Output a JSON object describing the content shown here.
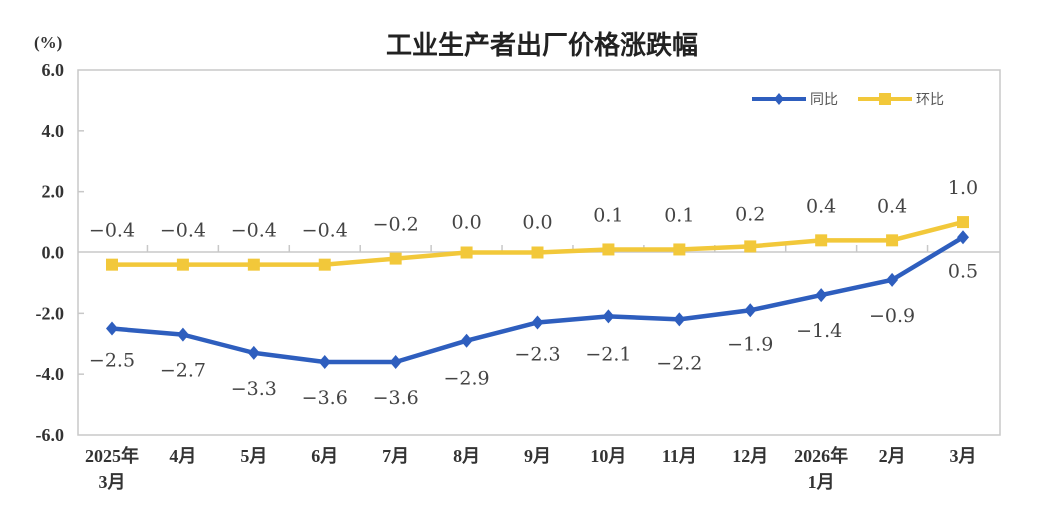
{
  "chart_data": {
    "type": "line",
    "title": "工业生产者出厂价格涨跌幅",
    "ylabel": "(%)",
    "xlabel": "",
    "ylim": [
      -6.0,
      6.0
    ],
    "yticks": [
      "6.0",
      "4.0",
      "2.0",
      "0.0",
      "-2.0",
      "-4.0",
      "-6.0"
    ],
    "ytick_values": [
      6,
      4,
      2,
      0,
      -2,
      -4,
      -6
    ],
    "grid": false,
    "legend_position": "top-right",
    "categories": [
      "2025年 3月",
      "4月",
      "5月",
      "6月",
      "7月",
      "8月",
      "9月",
      "10月",
      "11月",
      "12月",
      "2026年 1月",
      "2月",
      "3月"
    ],
    "category_lines": [
      [
        "2025年",
        "3月"
      ],
      [
        "4月"
      ],
      [
        "5月"
      ],
      [
        "6月"
      ],
      [
        "7月"
      ],
      [
        "8月"
      ],
      [
        "9月"
      ],
      [
        "10月"
      ],
      [
        "11月"
      ],
      [
        "12月"
      ],
      [
        "2026年",
        "1月"
      ],
      [
        "2月"
      ],
      [
        "3月"
      ]
    ],
    "series": [
      {
        "name": "同比",
        "color": "#2E5EBE",
        "marker": "diamond",
        "values": [
          -2.5,
          -2.7,
          -3.3,
          -3.6,
          -3.6,
          -2.9,
          -2.3,
          -2.1,
          -2.2,
          -1.9,
          -1.4,
          -0.9,
          0.5
        ],
        "labels": [
          "−2.5",
          "−2.7",
          "−3.3",
          "−3.6",
          "−3.6",
          "−2.9",
          "−2.3",
          "−2.1",
          "−2.2",
          "−1.9",
          "−1.4",
          "−0.9",
          "0.5"
        ]
      },
      {
        "name": "环比",
        "color": "#F2C83A",
        "marker": "square",
        "values": [
          -0.4,
          -0.4,
          -0.4,
          -0.4,
          -0.2,
          0.0,
          0.0,
          0.1,
          0.1,
          0.2,
          0.4,
          0.4,
          1.0
        ],
        "labels": [
          "−0.4",
          "−0.4",
          "−0.4",
          "−0.4",
          "−0.2",
          "0.0",
          "0.0",
          "0.1",
          "0.1",
          "0.2",
          "0.4",
          "0.4",
          "1.0"
        ]
      }
    ]
  }
}
